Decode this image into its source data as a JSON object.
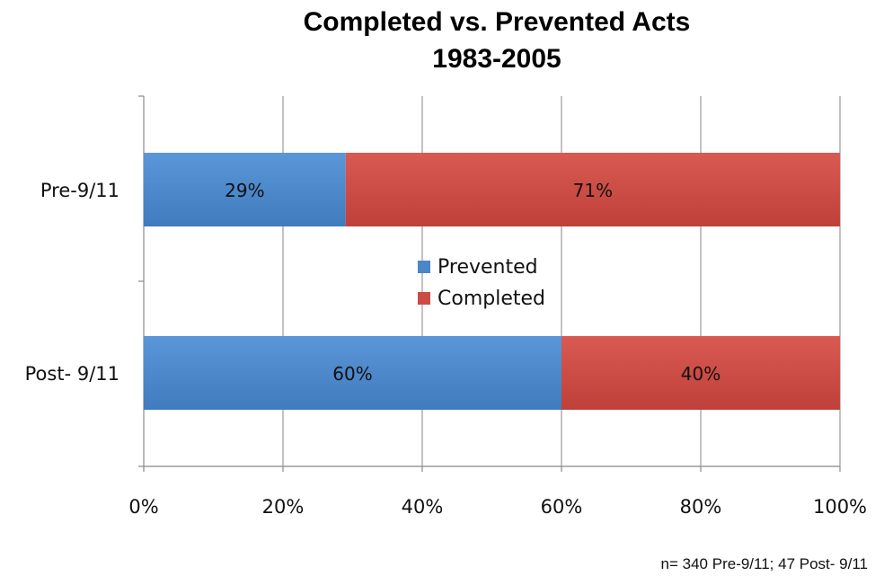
{
  "chart_data": {
    "type": "bar",
    "orientation": "horizontal",
    "stacked": true,
    "title": "Completed vs. Prevented Acts",
    "subtitle": "1983-2005",
    "categories": [
      "Pre-9/11",
      "Post- 9/11"
    ],
    "series": [
      {
        "name": "Prevented",
        "values": [
          29,
          60
        ],
        "labels": [
          "29%",
          "60%"
        ],
        "color": "#4a86c8"
      },
      {
        "name": "Completed",
        "values": [
          71,
          40
        ],
        "labels": [
          "71%",
          "40%"
        ],
        "color": "#cc4b45"
      }
    ],
    "xlim": [
      0,
      100
    ],
    "x_ticks": [
      0,
      20,
      40,
      60,
      80,
      100
    ],
    "x_tick_labels": [
      "0%",
      "20%",
      "40%",
      "60%",
      "80%",
      "100%"
    ],
    "grid": "vertical",
    "legend_position": "center",
    "note": "n= 340 Pre-9/11; 47 Post- 9/11"
  }
}
